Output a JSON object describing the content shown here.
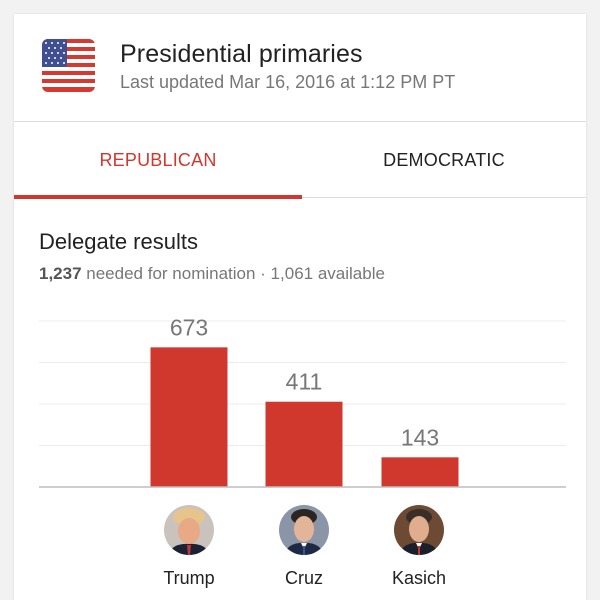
{
  "header": {
    "flag_icon": "us-flag-icon",
    "title": "Presidential primaries",
    "last_updated": "Last updated Mar 16, 2016 at 1:12 PM PT"
  },
  "tabs": [
    {
      "label": "REPUBLICAN",
      "active": true
    },
    {
      "label": "DEMOCRATIC",
      "active": false
    }
  ],
  "results": {
    "title": "Delegate results",
    "needed_number": "1,237",
    "needed_text": " needed for nomination · 1,061 available"
  },
  "colors": {
    "accent": "#d1372e",
    "bar": "#d0382e"
  },
  "chart_data": {
    "type": "bar",
    "categories": [
      "Trump",
      "Cruz",
      "Kasich"
    ],
    "values": [
      673,
      411,
      143
    ],
    "ylim": [
      0,
      800
    ],
    "grid": true
  }
}
